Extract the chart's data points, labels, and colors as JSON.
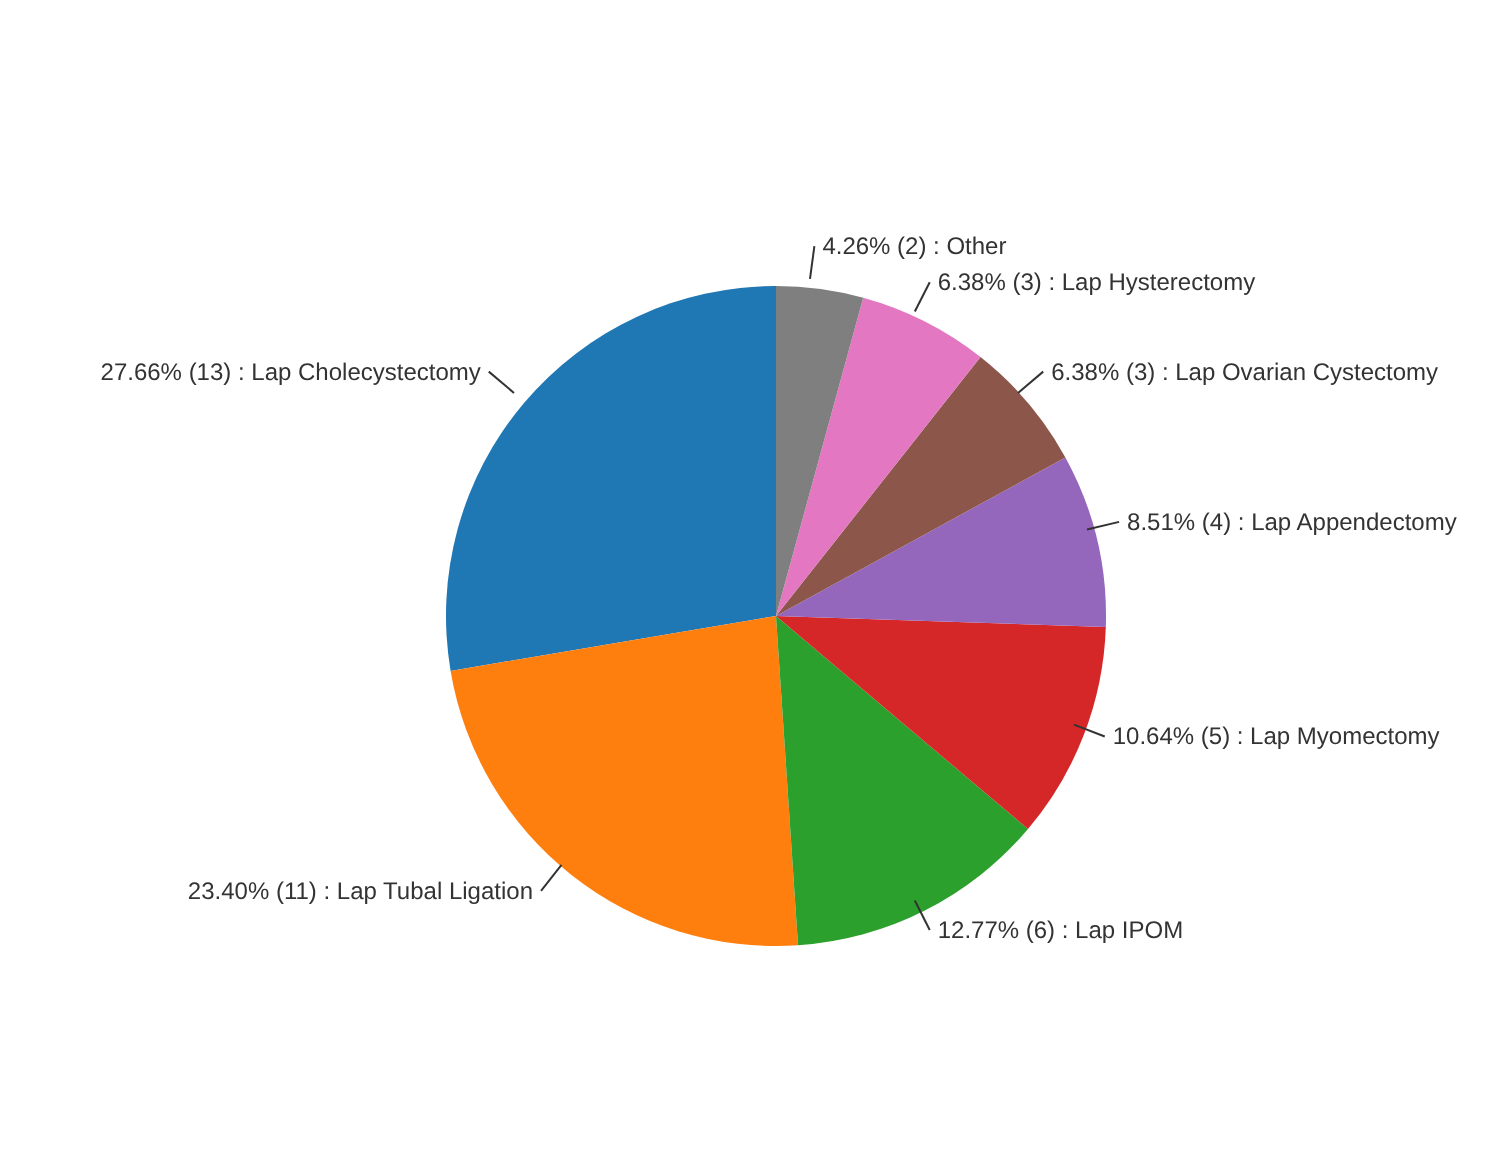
{
  "chart_data": {
    "type": "pie",
    "categories": [
      "27.66% (13) : Lap Cholecystectomy",
      "23.40% (11) : Lap Tubal Ligation",
      "12.77% (6) : Lap IPOM",
      "10.64% (5) : Lap Myomectomy",
      "8.51% (4) : Lap Appendectomy",
      "6.38% (3) : Lap Ovarian Cystectomy",
      "6.38% (3) : Lap Hysterectomy",
      "4.26% (2) : Other"
    ],
    "values": [
      13,
      11,
      6,
      5,
      4,
      3,
      3,
      2
    ],
    "colors": [
      "#1f77b4",
      "#ff7f0e",
      "#2ca02c",
      "#d62728",
      "#9467bd",
      "#8c564b",
      "#e377c2",
      "#7f7f7f"
    ]
  }
}
